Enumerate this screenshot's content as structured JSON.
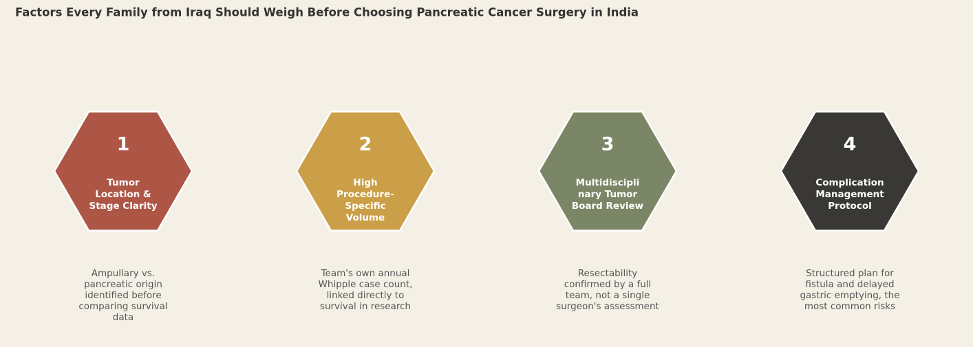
{
  "title": "Factors Every Family from Iraq Should Weigh Before Choosing Pancreatic Cancer Surgery in India",
  "steps": [
    {
      "number": 1,
      "color": "#ad5646",
      "label": [
        "Tumor",
        "Location &",
        "Stage Clarity"
      ],
      "description": [
        "Ampullary vs.",
        "pancreatic origin",
        "identified before",
        "comparing survival",
        "data"
      ]
    },
    {
      "number": 2,
      "color": "#cb9e48",
      "label": [
        "High",
        "Procedure-",
        "Specific",
        "Volume"
      ],
      "description": [
        "Team's own annual",
        "Whipple case count,",
        "linked directly to",
        "survival in research"
      ]
    },
    {
      "number": 3,
      "color": "#7a8665",
      "label": [
        "Multidiscipli",
        "nary Tumor",
        "Board Review"
      ],
      "description": [
        "Resectability",
        "confirmed by a full",
        "team, not a single",
        "surgeon's assessment"
      ]
    },
    {
      "number": 4,
      "color": "#393834",
      "label": [
        "Complication",
        "Management",
        "Protocol"
      ],
      "description": [
        "Structured plan for",
        "fistula and delayed",
        "gastric emptying, the",
        "most common risks"
      ]
    }
  ]
}
